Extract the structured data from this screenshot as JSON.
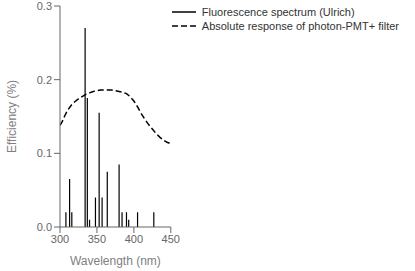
{
  "chart_data": {
    "type": "line",
    "xlabel": "Wavelength (nm)",
    "ylabel": "Efficiency (%)",
    "xlim": [
      300,
      450
    ],
    "ylim": [
      0,
      0.3
    ],
    "xticks": [
      300,
      350,
      400,
      450
    ],
    "yticks": [
      {
        "value": 0,
        "label": "0.0"
      },
      0.1,
      0.2,
      0.3
    ],
    "legend": "upper right",
    "series": [
      {
        "name": "Fluorescence spectrum (Ulrich)",
        "type": "stem",
        "color": "#000000",
        "line_style": "solid",
        "x": [
          308,
          313,
          316,
          334,
          337,
          340,
          348,
          353,
          357,
          364,
          380,
          384,
          390,
          393,
          405,
          427
        ],
        "values": [
          0.02,
          0.065,
          0.02,
          0.27,
          0.175,
          0.01,
          0.04,
          0.155,
          0.04,
          0.075,
          0.085,
          0.02,
          0.02,
          0.01,
          0.02,
          0.02
        ]
      },
      {
        "name": "Absolute response of photon-PMT+ filter",
        "type": "line",
        "color": "#000000",
        "line_style": "dashed",
        "x": [
          300,
          303,
          306,
          310,
          315,
          320,
          325,
          330,
          335,
          340,
          345,
          350,
          355,
          360,
          365,
          370,
          375,
          380,
          385,
          390,
          395,
          400,
          405,
          410,
          415,
          420,
          425,
          430,
          435,
          440,
          445,
          450
        ],
        "values": [
          0.138,
          0.143,
          0.15,
          0.158,
          0.165,
          0.17,
          0.174,
          0.177,
          0.18,
          0.182,
          0.184,
          0.185,
          0.186,
          0.186,
          0.186,
          0.186,
          0.185,
          0.184,
          0.183,
          0.181,
          0.177,
          0.171,
          0.163,
          0.154,
          0.146,
          0.139,
          0.133,
          0.127,
          0.122,
          0.118,
          0.115,
          0.113
        ]
      }
    ]
  }
}
